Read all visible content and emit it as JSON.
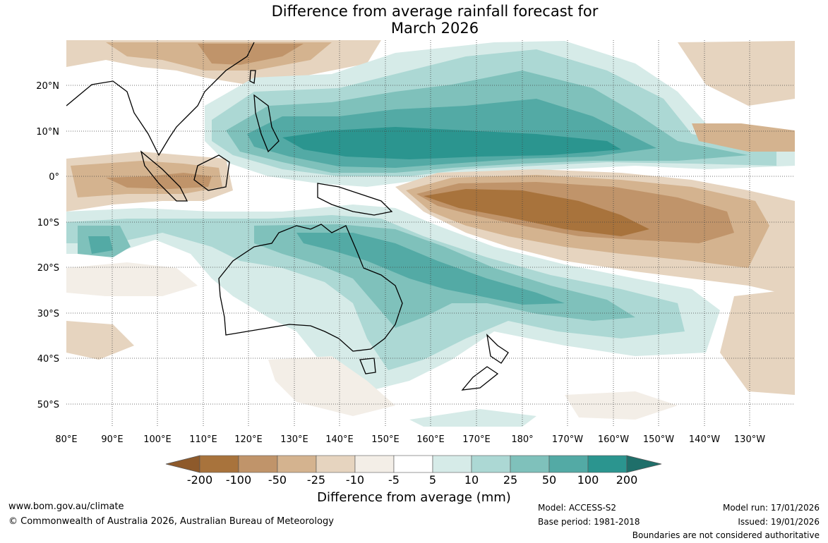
{
  "title_line1": "Difference from average rainfall forecast for",
  "title_line2": "March 2026",
  "lat_labels": [
    "20°N",
    "10°N",
    "0°",
    "10°S",
    "20°S",
    "30°S",
    "40°S",
    "50°S"
  ],
  "lon_labels": [
    "80°E",
    "90°E",
    "100°E",
    "110°E",
    "120°E",
    "130°E",
    "140°E",
    "150°E",
    "160°E",
    "170°E",
    "180°",
    "170°W",
    "160°W",
    "150°W",
    "140°W",
    "130°W"
  ],
  "colorbar": {
    "ticks": [
      "-200",
      "-100",
      "-50",
      "-25",
      "-10",
      "-5",
      "5",
      "10",
      "25",
      "50",
      "100",
      "200"
    ],
    "colors": [
      "#8e5a2b",
      "#a8733c",
      "#c0946a",
      "#d4b38f",
      "#e6d4bf",
      "#f3eee7",
      "#ffffff",
      "#d6ebe8",
      "#acd8d4",
      "#7fc1bb",
      "#53aaa5",
      "#2b958f",
      "#1f6f6a"
    ],
    "title": "Difference from average (mm)"
  },
  "footer": {
    "url": "www.bom.gov.au/climate",
    "copyright": "© Commonwealth of Australia 2026, Australian Bureau of Meteorology",
    "model": "Model: ACCESS-S2",
    "base_period": "Base period: 1981-2018",
    "model_run": "Model run: 17/01/2026",
    "issued": "Issued: 19/01/2026",
    "disclaimer": "Boundaries are not considered authoritative"
  }
}
